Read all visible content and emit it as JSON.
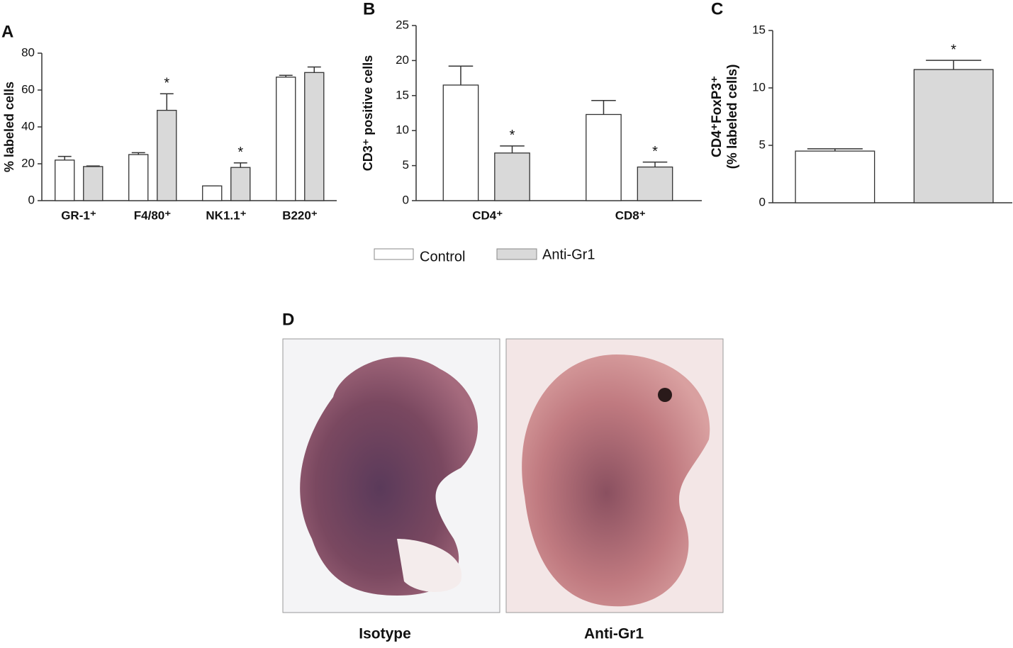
{
  "chart_data": [
    {
      "type": "bar",
      "panel": "A",
      "ylabel": "% labeled cells",
      "categories": [
        "GR-1⁺",
        "F4/80⁺",
        "NK1.1⁺",
        "B220⁺"
      ],
      "series": [
        {
          "color": "#ffffff",
          "values": [
            22,
            25,
            8,
            67
          ],
          "errors": [
            2,
            1,
            0,
            1
          ]
        },
        {
          "color": "#d9d9d9",
          "values": [
            18.5,
            49,
            18,
            69.5
          ],
          "errors": [
            0.3,
            9,
            2.5,
            3
          ],
          "annotations": [
            null,
            "*",
            "*",
            null
          ]
        }
      ],
      "ylim": [
        0,
        80
      ],
      "yticks": [
        0,
        20,
        40,
        60,
        80
      ]
    },
    {
      "type": "bar",
      "panel": "B",
      "ylabel": "CD3⁺ positive cells",
      "categories": [
        "CD4⁺",
        "CD8⁺"
      ],
      "series": [
        {
          "name": "Control",
          "color": "#ffffff",
          "values": [
            16.5,
            12.3
          ],
          "errors": [
            2.7,
            2
          ]
        },
        {
          "name": "Anti-Gr1",
          "color": "#d9d9d9",
          "values": [
            6.8,
            4.8
          ],
          "errors": [
            1,
            0.7
          ],
          "annotations": [
            "*",
            "*"
          ]
        }
      ],
      "ylim": [
        0,
        25
      ],
      "yticks": [
        0,
        5,
        10,
        15,
        20,
        25
      ]
    },
    {
      "type": "bar",
      "panel": "C",
      "ylabel": [
        "CD4⁺FoxP3⁺",
        "(% labeled cells)"
      ],
      "categories": [
        null
      ],
      "series": [
        {
          "color": "#ffffff",
          "values": [
            4.5
          ],
          "errors": [
            0.2
          ]
        },
        {
          "color": "#d9d9d9",
          "values": [
            11.6
          ],
          "errors": [
            0.8
          ],
          "annotations": [
            "*"
          ]
        }
      ],
      "ylim": [
        0,
        15
      ],
      "yticks": [
        0,
        5,
        10,
        15
      ]
    }
  ],
  "photos": {
    "panel": "D",
    "labels": [
      "Isotype",
      "Anti-Gr1"
    ]
  }
}
